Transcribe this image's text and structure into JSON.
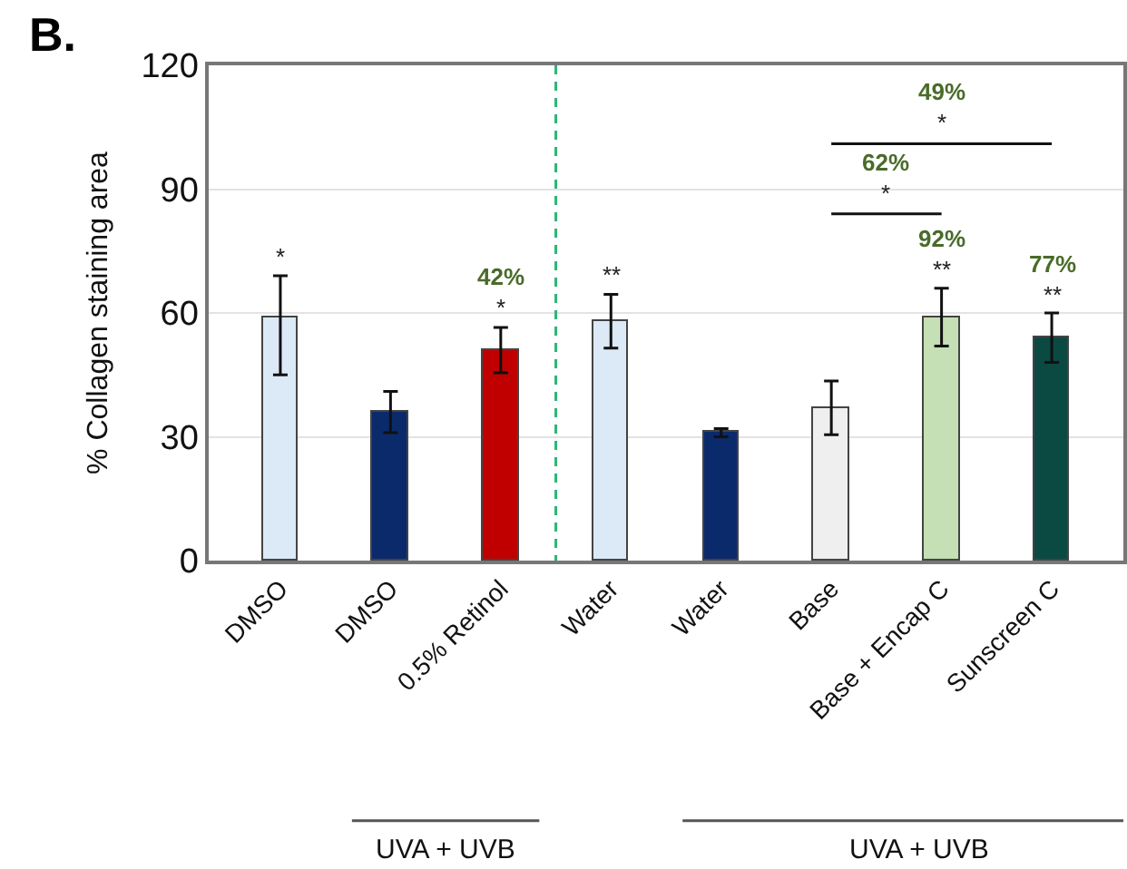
{
  "chart_data": {
    "type": "bar",
    "ylabel": "% Collagen staining area",
    "categories": [
      "DMSO",
      "DMSO",
      "0.5% Retinol",
      "Water",
      "Water",
      "Base",
      "Base + Encap C",
      "Sunscreen C"
    ],
    "values": [
      59,
      36,
      51,
      58,
      31,
      37,
      59,
      54
    ],
    "colors": [
      "#dce9f7",
      "#0b2a6b",
      "#c00000",
      "#dce9f7",
      "#0b2a6b",
      "#efefef",
      "#c5e0b4",
      "#0b4a42"
    ],
    "errors": [
      [
        45,
        69
      ],
      5,
      5.5,
      6.5,
      1,
      6.5,
      7,
      6
    ],
    "ylim": [
      0,
      120
    ],
    "yticks": [
      0,
      30,
      60,
      90,
      120
    ],
    "grid": "y",
    "annotations": [
      "B.",
      "UVA + UVB",
      "UVA + UVB",
      "62%\n*",
      "49%\n*",
      {
        "text": "*",
        "x": "DMSO",
        "y": 69
      },
      {
        "text": "42%\n*",
        "x": "0.5% Retinol",
        "y": 56.5
      },
      {
        "text": "**",
        "x": "Water",
        "y": 64.5
      },
      {
        "text": "92%\n**",
        "x": "Base + Encap C",
        "y": 66
      },
      {
        "text": "77%\n**",
        "x": "Sunscreen C",
        "y": 60
      }
    ]
  }
}
